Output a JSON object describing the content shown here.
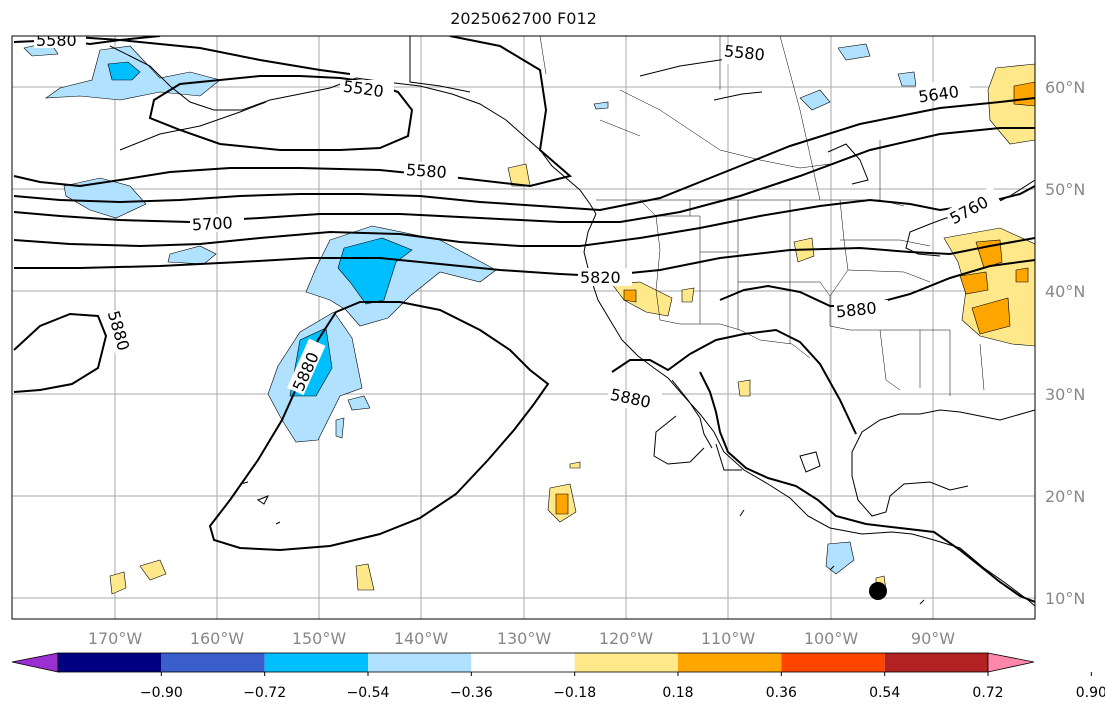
{
  "title": "2025062700 F012",
  "lon_labels": [
    "170°W",
    "160°W",
    "150°W",
    "140°W",
    "130°W",
    "120°W",
    "110°W",
    "100°W",
    "90°W"
  ],
  "lat_labels": [
    "60°N",
    "50°N",
    "40°N",
    "30°N",
    "20°N",
    "10°N"
  ],
  "contour_labels": [
    {
      "text": "5580",
      "place": "top-left"
    },
    {
      "text": "5520",
      "place": "gulf-of-alaska"
    },
    {
      "text": "5580",
      "place": "top-center"
    },
    {
      "text": "5640",
      "place": "top-right"
    },
    {
      "text": "5580",
      "place": "north-pacific"
    },
    {
      "text": "5700",
      "place": "central-pacific"
    },
    {
      "text": "5760",
      "place": "great-lakes"
    },
    {
      "text": "5820",
      "place": "california-coast"
    },
    {
      "text": "5880",
      "place": "west-pacific"
    },
    {
      "text": "5880",
      "place": "subtropical-high"
    },
    {
      "text": "5880",
      "place": "plains"
    },
    {
      "text": "5880",
      "place": "mexico"
    }
  ],
  "colorbar": {
    "ticks": [
      "−0.90",
      "−0.72",
      "−0.54",
      "−0.36",
      "−0.18",
      "0.18",
      "0.36",
      "0.54",
      "0.72",
      "0.90"
    ],
    "colors": [
      "#9b30d0",
      "#000080",
      "#3a5fcd",
      "#00bfff",
      "#b0e2ff",
      "#ffffff",
      "#ffe88a",
      "#ffa500",
      "#ff4500",
      "#b22222",
      "#ff88aa"
    ]
  },
  "marker": {
    "symbol": "filled-circle"
  }
}
